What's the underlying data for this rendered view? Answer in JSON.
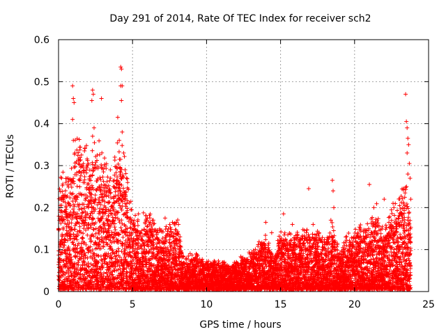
{
  "chart_data": {
    "type": "scatter",
    "title": "Day 291 of 2014, Rate Of TEC Index for receiver sch2",
    "xlabel": "GPS time / hours",
    "ylabel": "ROTI / TECUs",
    "xlim": [
      0,
      25
    ],
    "ylim": [
      0,
      0.6
    ],
    "xticks": [
      "0",
      "5",
      "10",
      "15",
      "20",
      "25"
    ],
    "yticks": [
      "0",
      "0.1",
      "0.2",
      "0.3",
      "0.4",
      "0.5",
      "0.6"
    ],
    "grid": true,
    "marker": "+",
    "color": "#ff0000",
    "series": [
      {
        "name": "ROTI",
        "outliers": [
          [
            0.95,
            0.49
          ],
          [
            1.0,
            0.46
          ],
          [
            1.05,
            0.45
          ],
          [
            0.95,
            0.41
          ],
          [
            1.0,
            0.36
          ],
          [
            1.1,
            0.33
          ],
          [
            2.3,
            0.48
          ],
          [
            2.35,
            0.47
          ],
          [
            2.25,
            0.455
          ],
          [
            2.4,
            0.39
          ],
          [
            2.3,
            0.37
          ],
          [
            2.9,
            0.46
          ],
          [
            4.2,
            0.535
          ],
          [
            4.25,
            0.53
          ],
          [
            4.2,
            0.49
          ],
          [
            4.3,
            0.49
          ],
          [
            4.25,
            0.455
          ],
          [
            4.0,
            0.415
          ],
          [
            4.3,
            0.38
          ],
          [
            4.1,
            0.36
          ],
          [
            4.4,
            0.33
          ],
          [
            4.5,
            0.29
          ],
          [
            4.6,
            0.27
          ],
          [
            0.2,
            0.27
          ],
          [
            0.5,
            0.26
          ],
          [
            1.6,
            0.3
          ],
          [
            3.5,
            0.29
          ],
          [
            3.8,
            0.32
          ],
          [
            5.4,
            0.185
          ],
          [
            6.0,
            0.175
          ],
          [
            6.4,
            0.17
          ],
          [
            7.2,
            0.175
          ],
          [
            7.7,
            0.165
          ],
          [
            8.1,
            0.16
          ],
          [
            9.3,
            0.09
          ],
          [
            11.2,
            0.07
          ],
          [
            12.9,
            0.09
          ],
          [
            14.0,
            0.165
          ],
          [
            14.4,
            0.14
          ],
          [
            15.2,
            0.185
          ],
          [
            15.8,
            0.16
          ],
          [
            16.3,
            0.125
          ],
          [
            16.9,
            0.245
          ],
          [
            17.2,
            0.16
          ],
          [
            18.5,
            0.265
          ],
          [
            18.55,
            0.24
          ],
          [
            18.6,
            0.2
          ],
          [
            18.4,
            0.17
          ],
          [
            17.6,
            0.14
          ],
          [
            19.4,
            0.13
          ],
          [
            21.0,
            0.255
          ],
          [
            21.3,
            0.2
          ],
          [
            22.0,
            0.22
          ],
          [
            22.6,
            0.21
          ],
          [
            23.0,
            0.18
          ],
          [
            23.3,
            0.245
          ],
          [
            23.45,
            0.47
          ],
          [
            23.5,
            0.405
          ],
          [
            23.55,
            0.39
          ],
          [
            23.6,
            0.365
          ],
          [
            23.65,
            0.35
          ],
          [
            23.55,
            0.33
          ],
          [
            23.7,
            0.305
          ],
          [
            23.6,
            0.28
          ],
          [
            23.75,
            0.27
          ],
          [
            23.8,
            0.22
          ]
        ]
      }
    ],
    "envelope": [
      [
        0.0,
        0.22
      ],
      [
        0.5,
        0.26
      ],
      [
        1.0,
        0.3
      ],
      [
        1.5,
        0.33
      ],
      [
        2.0,
        0.3
      ],
      [
        2.5,
        0.33
      ],
      [
        3.0,
        0.29
      ],
      [
        3.5,
        0.25
      ],
      [
        4.0,
        0.3
      ],
      [
        4.5,
        0.28
      ],
      [
        5.0,
        0.18
      ],
      [
        5.5,
        0.14
      ],
      [
        6.0,
        0.17
      ],
      [
        6.5,
        0.14
      ],
      [
        7.0,
        0.12
      ],
      [
        7.5,
        0.14
      ],
      [
        8.0,
        0.16
      ],
      [
        8.5,
        0.06
      ],
      [
        9.0,
        0.08
      ],
      [
        9.5,
        0.07
      ],
      [
        10.0,
        0.06
      ],
      [
        10.5,
        0.06
      ],
      [
        11.0,
        0.06
      ],
      [
        11.5,
        0.05
      ],
      [
        12.0,
        0.06
      ],
      [
        12.5,
        0.07
      ],
      [
        13.0,
        0.08
      ],
      [
        13.5,
        0.1
      ],
      [
        14.0,
        0.12
      ],
      [
        14.5,
        0.08
      ],
      [
        15.0,
        0.12
      ],
      [
        15.5,
        0.11
      ],
      [
        16.0,
        0.12
      ],
      [
        16.5,
        0.14
      ],
      [
        17.0,
        0.12
      ],
      [
        17.5,
        0.13
      ],
      [
        18.0,
        0.1
      ],
      [
        18.5,
        0.14
      ],
      [
        19.0,
        0.08
      ],
      [
        19.5,
        0.11
      ],
      [
        20.0,
        0.12
      ],
      [
        20.5,
        0.15
      ],
      [
        21.0,
        0.13
      ],
      [
        21.5,
        0.18
      ],
      [
        22.0,
        0.13
      ],
      [
        22.5,
        0.16
      ],
      [
        23.0,
        0.2
      ],
      [
        23.5,
        0.24
      ],
      [
        23.8,
        0.15
      ]
    ]
  }
}
